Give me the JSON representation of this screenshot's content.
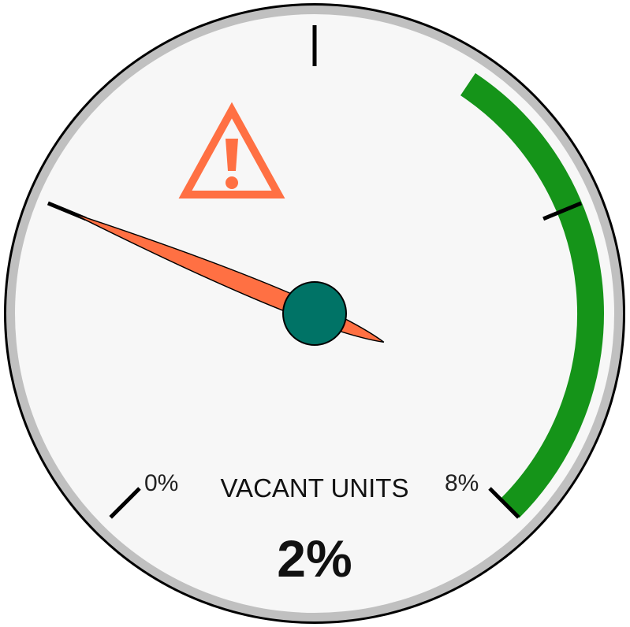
{
  "chart_data": {
    "type": "gauge",
    "title": "VACANT UNITS",
    "value": 2,
    "value_label": "2%",
    "min": 0,
    "max": 8,
    "min_label": "0%",
    "max_label": "8%",
    "unit": "%",
    "ticks": [
      0,
      2,
      4,
      6,
      8
    ],
    "band": {
      "from": 5,
      "to": 8,
      "color": "#159419"
    },
    "warning_icon": "warning-triangle-icon",
    "colors": {
      "face": "#f7f7f7",
      "rim": "#c0c0c0",
      "needle": "#ff7043",
      "hub": "#007366",
      "warning": "#ff7043",
      "band": "#159419",
      "text": "#111111"
    }
  }
}
